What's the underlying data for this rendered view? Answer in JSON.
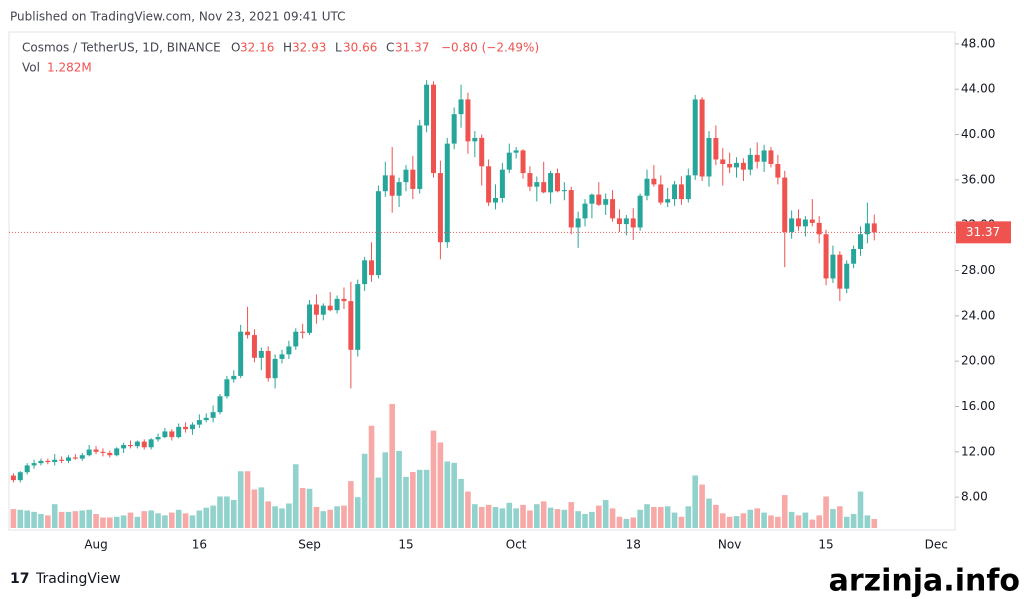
{
  "header": {
    "published": "Published on TradingView.com, Nov 23, 2021 09:41 UTC",
    "footer_logo": "TradingView",
    "watermark": "arzinja.info"
  },
  "chart_data": {
    "type": "candlestick",
    "title": "Cosmos / TetherUS, 1D, BINANCE",
    "legend": {
      "open_label": "O",
      "high_label": "H",
      "low_label": "L",
      "close_label": "C",
      "change": "−0.80 (−2.49%)",
      "volume_label": "Vol",
      "volume_value_label": "1.282M"
    },
    "up_color": "#26a69a",
    "down_color": "#ef5350",
    "categories": [
      null,
      null,
      null,
      null,
      null,
      null,
      null,
      null,
      null,
      null,
      null,
      null,
      "Aug",
      null,
      null,
      null,
      null,
      null,
      null,
      null,
      null,
      null,
      null,
      null,
      null,
      null,
      null,
      "16",
      null,
      null,
      null,
      null,
      null,
      null,
      null,
      null,
      null,
      null,
      null,
      null,
      null,
      null,
      null,
      "Sep",
      null,
      null,
      null,
      null,
      null,
      null,
      null,
      null,
      null,
      null,
      null,
      null,
      null,
      "15",
      null,
      null,
      null,
      null,
      null,
      null,
      null,
      null,
      null,
      null,
      null,
      null,
      null,
      null,
      null,
      "Oct",
      null,
      null,
      null,
      null,
      null,
      null,
      null,
      null,
      null,
      null,
      null,
      null,
      null,
      null,
      null,
      null,
      "18",
      null,
      null,
      null,
      null,
      null,
      null,
      null,
      null,
      null,
      null,
      null,
      null,
      null,
      "Nov",
      null,
      null,
      null,
      null,
      null,
      null,
      null,
      null,
      null,
      null,
      null,
      null,
      null,
      "15",
      null,
      null,
      null,
      null,
      null,
      null,
      null,
      null,
      null,
      null,
      null,
      null,
      null,
      null,
      null,
      "Dec",
      null
    ],
    "open": [
      9.9,
      9.5,
      10.2,
      10.8,
      11.0,
      11.2,
      11.1,
      11.3,
      11.2,
      11.5,
      11.4,
      11.7,
      12.2,
      12.0,
      11.9,
      11.7,
      12.3,
      12.6,
      12.5,
      12.9,
      12.4,
      13.1,
      13.3,
      13.8,
      13.3,
      14.2,
      14.0,
      14.4,
      14.8,
      15.0,
      15.5,
      16.9,
      18.4,
      18.7,
      22.6,
      22.3,
      20.3,
      20.9,
      18.5,
      20.2,
      20.6,
      21.3,
      22.6,
      22.5,
      25.0,
      24.1,
      24.9,
      24.5,
      25.5,
      25.3,
      21.0,
      26.8,
      28.9,
      27.6,
      35.0,
      36.4,
      34.6,
      35.8,
      36.9,
      35.2,
      40.8,
      44.4,
      36.6,
      30.5,
      39.2,
      41.8,
      43.1,
      39.4,
      39.7,
      37.2,
      34.0,
      34.4,
      36.9,
      38.4,
      38.6,
      36.6,
      35.4,
      35.8,
      34.9,
      36.6,
      35.0,
      35.1,
      31.8,
      32.6,
      33.9,
      34.7,
      33.8,
      34.3,
      32.6,
      32.1,
      32.6,
      31.8,
      34.6,
      36.1,
      35.6,
      34.0,
      34.3,
      35.6,
      34.3,
      36.4,
      43.1,
      36.3,
      39.7,
      37.8,
      37.4,
      37.1,
      37.5,
      36.9,
      38.2,
      37.6,
      38.6,
      37.4,
      36.2,
      31.4,
      32.6,
      31.9,
      32.5,
      32.2,
      31.2,
      27.3,
      29.4,
      26.4,
      28.6,
      29.9,
      31.2,
      32.16,
      null,
      null,
      null,
      null,
      null,
      null,
      null,
      null,
      null,
      null
    ],
    "high": [
      10.1,
      10.3,
      11.0,
      11.3,
      11.4,
      11.4,
      11.8,
      11.6,
      11.7,
      11.8,
      11.9,
      12.6,
      12.5,
      12.3,
      12.1,
      12.4,
      12.8,
      13.0,
      13.0,
      13.1,
      13.2,
      13.6,
      14.1,
      14.0,
      14.5,
      14.6,
      14.6,
      15.3,
      15.4,
      16.1,
      17.1,
      18.7,
      19.2,
      23.2,
      24.8,
      22.8,
      21.2,
      21.3,
      20.6,
      21.0,
      21.8,
      22.9,
      23.3,
      25.4,
      25.9,
      25.1,
      26.1,
      25.8,
      26.5,
      27.0,
      27.2,
      29.2,
      30.5,
      35.5,
      37.6,
      38.9,
      36.2,
      37.3,
      38.1,
      41.3,
      44.8,
      44.7,
      37.7,
      39.7,
      42.4,
      44.4,
      43.7,
      40.3,
      40.0,
      37.8,
      35.6,
      37.5,
      39.2,
      38.9,
      38.7,
      37.2,
      36.3,
      37.6,
      36.8,
      37.0,
      35.8,
      35.4,
      33.2,
      34.3,
      34.8,
      35.8,
      34.8,
      35.1,
      33.4,
      32.9,
      33.5,
      34.8,
      36.9,
      37.3,
      36.4,
      35.3,
      35.9,
      36.3,
      37.0,
      43.5,
      43.3,
      40.3,
      40.8,
      38.8,
      38.4,
      38.0,
      37.9,
      38.8,
      39.3,
      39.1,
      38.9,
      38.2,
      36.8,
      33.3,
      33.4,
      32.8,
      34.3,
      32.8,
      31.6,
      30.2,
      29.7,
      28.9,
      30.2,
      31.9,
      34.0,
      32.93,
      null,
      null,
      null,
      null,
      null,
      null,
      null,
      null,
      null,
      null
    ],
    "low": [
      9.3,
      9.3,
      10.0,
      10.5,
      10.8,
      10.9,
      10.8,
      11.0,
      11.0,
      11.3,
      11.2,
      11.6,
      11.8,
      11.6,
      11.5,
      11.6,
      11.9,
      12.3,
      12.3,
      12.2,
      12.2,
      12.9,
      13.2,
      13.0,
      13.2,
      13.7,
      13.5,
      14.1,
      14.6,
      14.6,
      15.3,
      16.7,
      18.1,
      18.5,
      22.0,
      19.9,
      19.2,
      18.2,
      17.6,
      19.8,
      20.2,
      21.0,
      22.0,
      22.3,
      23.3,
      23.6,
      24.4,
      24.2,
      24.6,
      17.6,
      20.4,
      26.2,
      27.0,
      27.3,
      34.5,
      33.1,
      33.6,
      35.0,
      34.3,
      34.8,
      40.2,
      36.2,
      29.0,
      30.0,
      38.7,
      40.6,
      38.3,
      38.0,
      35.5,
      33.7,
      33.4,
      34.0,
      36.6,
      37.9,
      36.1,
      35.0,
      34.1,
      34.8,
      33.9,
      34.9,
      34.2,
      31.2,
      30.0,
      31.9,
      32.6,
      33.7,
      32.9,
      32.3,
      31.4,
      31.1,
      30.7,
      31.5,
      34.2,
      35.4,
      33.8,
      33.6,
      33.7,
      33.8,
      34.0,
      36.0,
      35.9,
      35.4,
      37.3,
      35.5,
      36.6,
      36.2,
      35.9,
      36.4,
      37.0,
      36.7,
      37.1,
      35.6,
      28.3,
      30.8,
      31.5,
      31.0,
      31.9,
      30.4,
      26.7,
      26.9,
      25.3,
      26.0,
      28.2,
      29.3,
      30.4,
      30.66,
      null,
      null,
      null,
      null,
      null,
      null,
      null,
      null,
      null,
      null
    ],
    "close": [
      9.5,
      10.2,
      10.8,
      11.0,
      11.2,
      11.1,
      11.3,
      11.2,
      11.5,
      11.4,
      11.7,
      12.2,
      12.0,
      11.9,
      11.7,
      12.3,
      12.6,
      12.5,
      12.9,
      12.4,
      13.1,
      13.3,
      13.8,
      13.3,
      14.2,
      14.0,
      14.4,
      14.8,
      15.0,
      15.5,
      16.9,
      18.4,
      18.7,
      22.6,
      22.3,
      20.3,
      20.9,
      18.5,
      20.2,
      20.6,
      21.3,
      22.6,
      22.5,
      25.0,
      24.1,
      24.9,
      24.5,
      25.5,
      25.3,
      21.0,
      26.8,
      28.9,
      27.6,
      35.0,
      36.4,
      34.6,
      35.8,
      36.9,
      35.2,
      40.8,
      44.4,
      36.6,
      30.5,
      39.2,
      41.8,
      43.1,
      39.4,
      39.7,
      37.2,
      34.0,
      34.4,
      36.9,
      38.4,
      38.6,
      36.6,
      35.4,
      35.8,
      34.9,
      36.6,
      35.0,
      35.1,
      31.8,
      32.6,
      33.9,
      34.7,
      33.8,
      34.3,
      32.6,
      32.1,
      32.6,
      31.8,
      34.6,
      36.1,
      35.6,
      34.0,
      34.3,
      35.6,
      34.3,
      36.4,
      43.1,
      36.3,
      39.7,
      37.8,
      37.4,
      37.1,
      37.5,
      36.9,
      38.2,
      37.6,
      38.6,
      37.4,
      36.2,
      31.4,
      32.6,
      31.9,
      32.5,
      32.2,
      31.2,
      27.3,
      29.4,
      26.4,
      28.6,
      29.9,
      31.2,
      32.16,
      31.37,
      null,
      null,
      null,
      null,
      null,
      null,
      null,
      null,
      null,
      null
    ],
    "volume": [
      2.7,
      2.6,
      2.5,
      2.3,
      2.0,
      1.8,
      3.4,
      2.3,
      2.3,
      2.4,
      2.5,
      2.6,
      2.0,
      1.5,
      1.5,
      1.6,
      1.8,
      2.2,
      1.6,
      2.4,
      2.5,
      2.1,
      1.8,
      2.2,
      2.6,
      2.1,
      1.8,
      2.5,
      2.9,
      3.2,
      4.5,
      4.5,
      4.0,
      8.1,
      8.1,
      5.5,
      5.8,
      3.8,
      3.1,
      2.8,
      3.5,
      9.1,
      5.7,
      5.6,
      3.0,
      2.4,
      2.6,
      3.1,
      3.2,
      6.7,
      4.4,
      10.6,
      14.6,
      7.2,
      10.8,
      17.7,
      11.0,
      7.3,
      8.0,
      8.3,
      8.3,
      13.9,
      12.2,
      9.5,
      9.3,
      7.0,
      5.2,
      3.4,
      3.0,
      3.3,
      3.0,
      2.8,
      3.6,
      2.8,
      3.3,
      2.5,
      3.4,
      3.8,
      2.9,
      2.7,
      2.6,
      3.7,
      2.4,
      2.0,
      2.3,
      3.2,
      4.0,
      2.8,
      1.6,
      1.3,
      1.5,
      2.6,
      3.4,
      3.0,
      3.0,
      3.1,
      2.2,
      1.6,
      3.1,
      7.5,
      6.2,
      4.2,
      3.3,
      2.1,
      1.6,
      1.7,
      2.1,
      2.6,
      2.8,
      2.2,
      1.8,
      1.6,
      4.7,
      2.3,
      1.8,
      2.2,
      1.2,
      1.8,
      4.5,
      2.7,
      3.1,
      1.6,
      2.0,
      5.2,
      1.8,
      1.282,
      null,
      null,
      null,
      null,
      null,
      null,
      null,
      null,
      null,
      null
    ],
    "ylim": [
      5.1,
      49.05
    ],
    "yticks": [
      {
        "value": 8,
        "label": "8.00"
      },
      {
        "value": 12,
        "label": "12.00"
      },
      {
        "value": 16,
        "label": "16.00"
      },
      {
        "value": 20,
        "label": "20.00"
      },
      {
        "value": 24,
        "label": "24.00"
      },
      {
        "value": 28,
        "label": "28.00"
      },
      {
        "value": 32,
        "label": "32.00"
      },
      {
        "value": 36,
        "label": "36.00"
      },
      {
        "value": 40,
        "label": "40.00"
      },
      {
        "value": 44,
        "label": "44.00"
      },
      {
        "value": 48,
        "label": "48.00"
      }
    ],
    "grid": false
  }
}
